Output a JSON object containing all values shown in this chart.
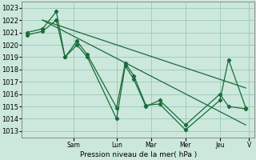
{
  "background_color": "#cce8dc",
  "grid_color": "#99c8b4",
  "line_color": "#1a6b3a",
  "xlabel": "Pression niveau de la mer( hPa )",
  "ylim": [
    1012.5,
    1023.5
  ],
  "yticks": [
    1013,
    1014,
    1015,
    1016,
    1017,
    1018,
    1019,
    1020,
    1021,
    1022,
    1023
  ],
  "xlim": [
    0,
    13.5
  ],
  "day_labels": [
    "Sam",
    "Lun",
    "Mar",
    "Mer",
    "Jeu",
    "V"
  ],
  "day_positions": [
    3.0,
    5.5,
    7.5,
    9.5,
    11.5,
    13.2
  ],
  "series": [
    {
      "x": [
        0.3,
        1.2,
        2.0,
        2.5,
        3.2,
        3.8,
        5.5,
        6.0,
        6.5,
        7.2,
        8.0,
        9.5,
        11.5,
        12.0,
        13.0
      ],
      "y": [
        1021.0,
        1021.3,
        1022.7,
        1019.0,
        1020.3,
        1019.2,
        1014.9,
        1018.5,
        1017.5,
        1015.1,
        1015.2,
        1013.1,
        1015.5,
        1018.8,
        1014.9
      ],
      "marker": true
    },
    {
      "x": [
        0.3,
        1.2,
        2.0,
        2.5,
        3.2,
        3.8,
        5.5,
        6.0,
        6.5,
        7.2,
        8.0,
        9.5,
        11.5,
        12.0,
        13.0
      ],
      "y": [
        1020.8,
        1021.1,
        1022.0,
        1019.0,
        1020.0,
        1019.0,
        1014.0,
        1018.3,
        1017.2,
        1015.0,
        1015.5,
        1013.5,
        1016.0,
        1015.0,
        1014.8
      ],
      "marker": true
    },
    {
      "x": [
        1.2,
        13.0
      ],
      "y": [
        1022.0,
        1016.5
      ],
      "marker": false
    },
    {
      "x": [
        1.2,
        13.0
      ],
      "y": [
        1022.0,
        1013.5
      ],
      "marker": false
    }
  ]
}
